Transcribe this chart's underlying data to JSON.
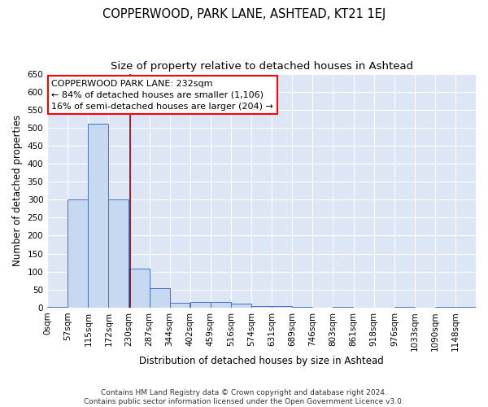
{
  "title": "COPPERWOOD, PARK LANE, ASHTEAD, KT21 1EJ",
  "subtitle": "Size of property relative to detached houses in Ashtead",
  "xlabel": "Distribution of detached houses by size in Ashtead",
  "ylabel": "Number of detached properties",
  "bin_labels": [
    "0sqm",
    "57sqm",
    "115sqm",
    "172sqm",
    "230sqm",
    "287sqm",
    "344sqm",
    "402sqm",
    "459sqm",
    "516sqm",
    "574sqm",
    "631sqm",
    "689sqm",
    "746sqm",
    "803sqm",
    "861sqm",
    "918sqm",
    "976sqm",
    "1033sqm",
    "1090sqm",
    "1148sqm"
  ],
  "bin_edges": [
    0,
    57,
    115,
    172,
    230,
    287,
    344,
    402,
    459,
    516,
    574,
    631,
    689,
    746,
    803,
    861,
    918,
    976,
    1033,
    1090,
    1148
  ],
  "bar_heights": [
    3,
    300,
    510,
    300,
    108,
    53,
    13,
    15,
    15,
    10,
    5,
    5,
    3,
    0,
    3,
    0,
    0,
    3,
    0,
    3,
    3
  ],
  "bar_color": "#c6d9f0",
  "bar_edge_color": "#4472c4",
  "vline_x": 232,
  "vline_color": "#8b0000",
  "annotation_line1": "COPPERWOOD PARK LANE: 232sqm",
  "annotation_line2": "← 84% of detached houses are smaller (1,106)",
  "annotation_line3": "16% of semi-detached houses are larger (204) →",
  "annotation_box_color": "white",
  "annotation_box_edge": "red",
  "ylim": [
    0,
    650
  ],
  "yticks": [
    0,
    50,
    100,
    150,
    200,
    250,
    300,
    350,
    400,
    450,
    500,
    550,
    600,
    650
  ],
  "xlim_max": 1205,
  "footnote": "Contains HM Land Registry data © Crown copyright and database right 2024.\nContains public sector information licensed under the Open Government Licence v3.0.",
  "bg_color": "#dce6f5",
  "grid_color": "white",
  "title_fontsize": 10.5,
  "subtitle_fontsize": 9.5,
  "axis_label_fontsize": 8.5,
  "tick_fontsize": 7.5,
  "annotation_fontsize": 8,
  "footnote_fontsize": 6.5
}
